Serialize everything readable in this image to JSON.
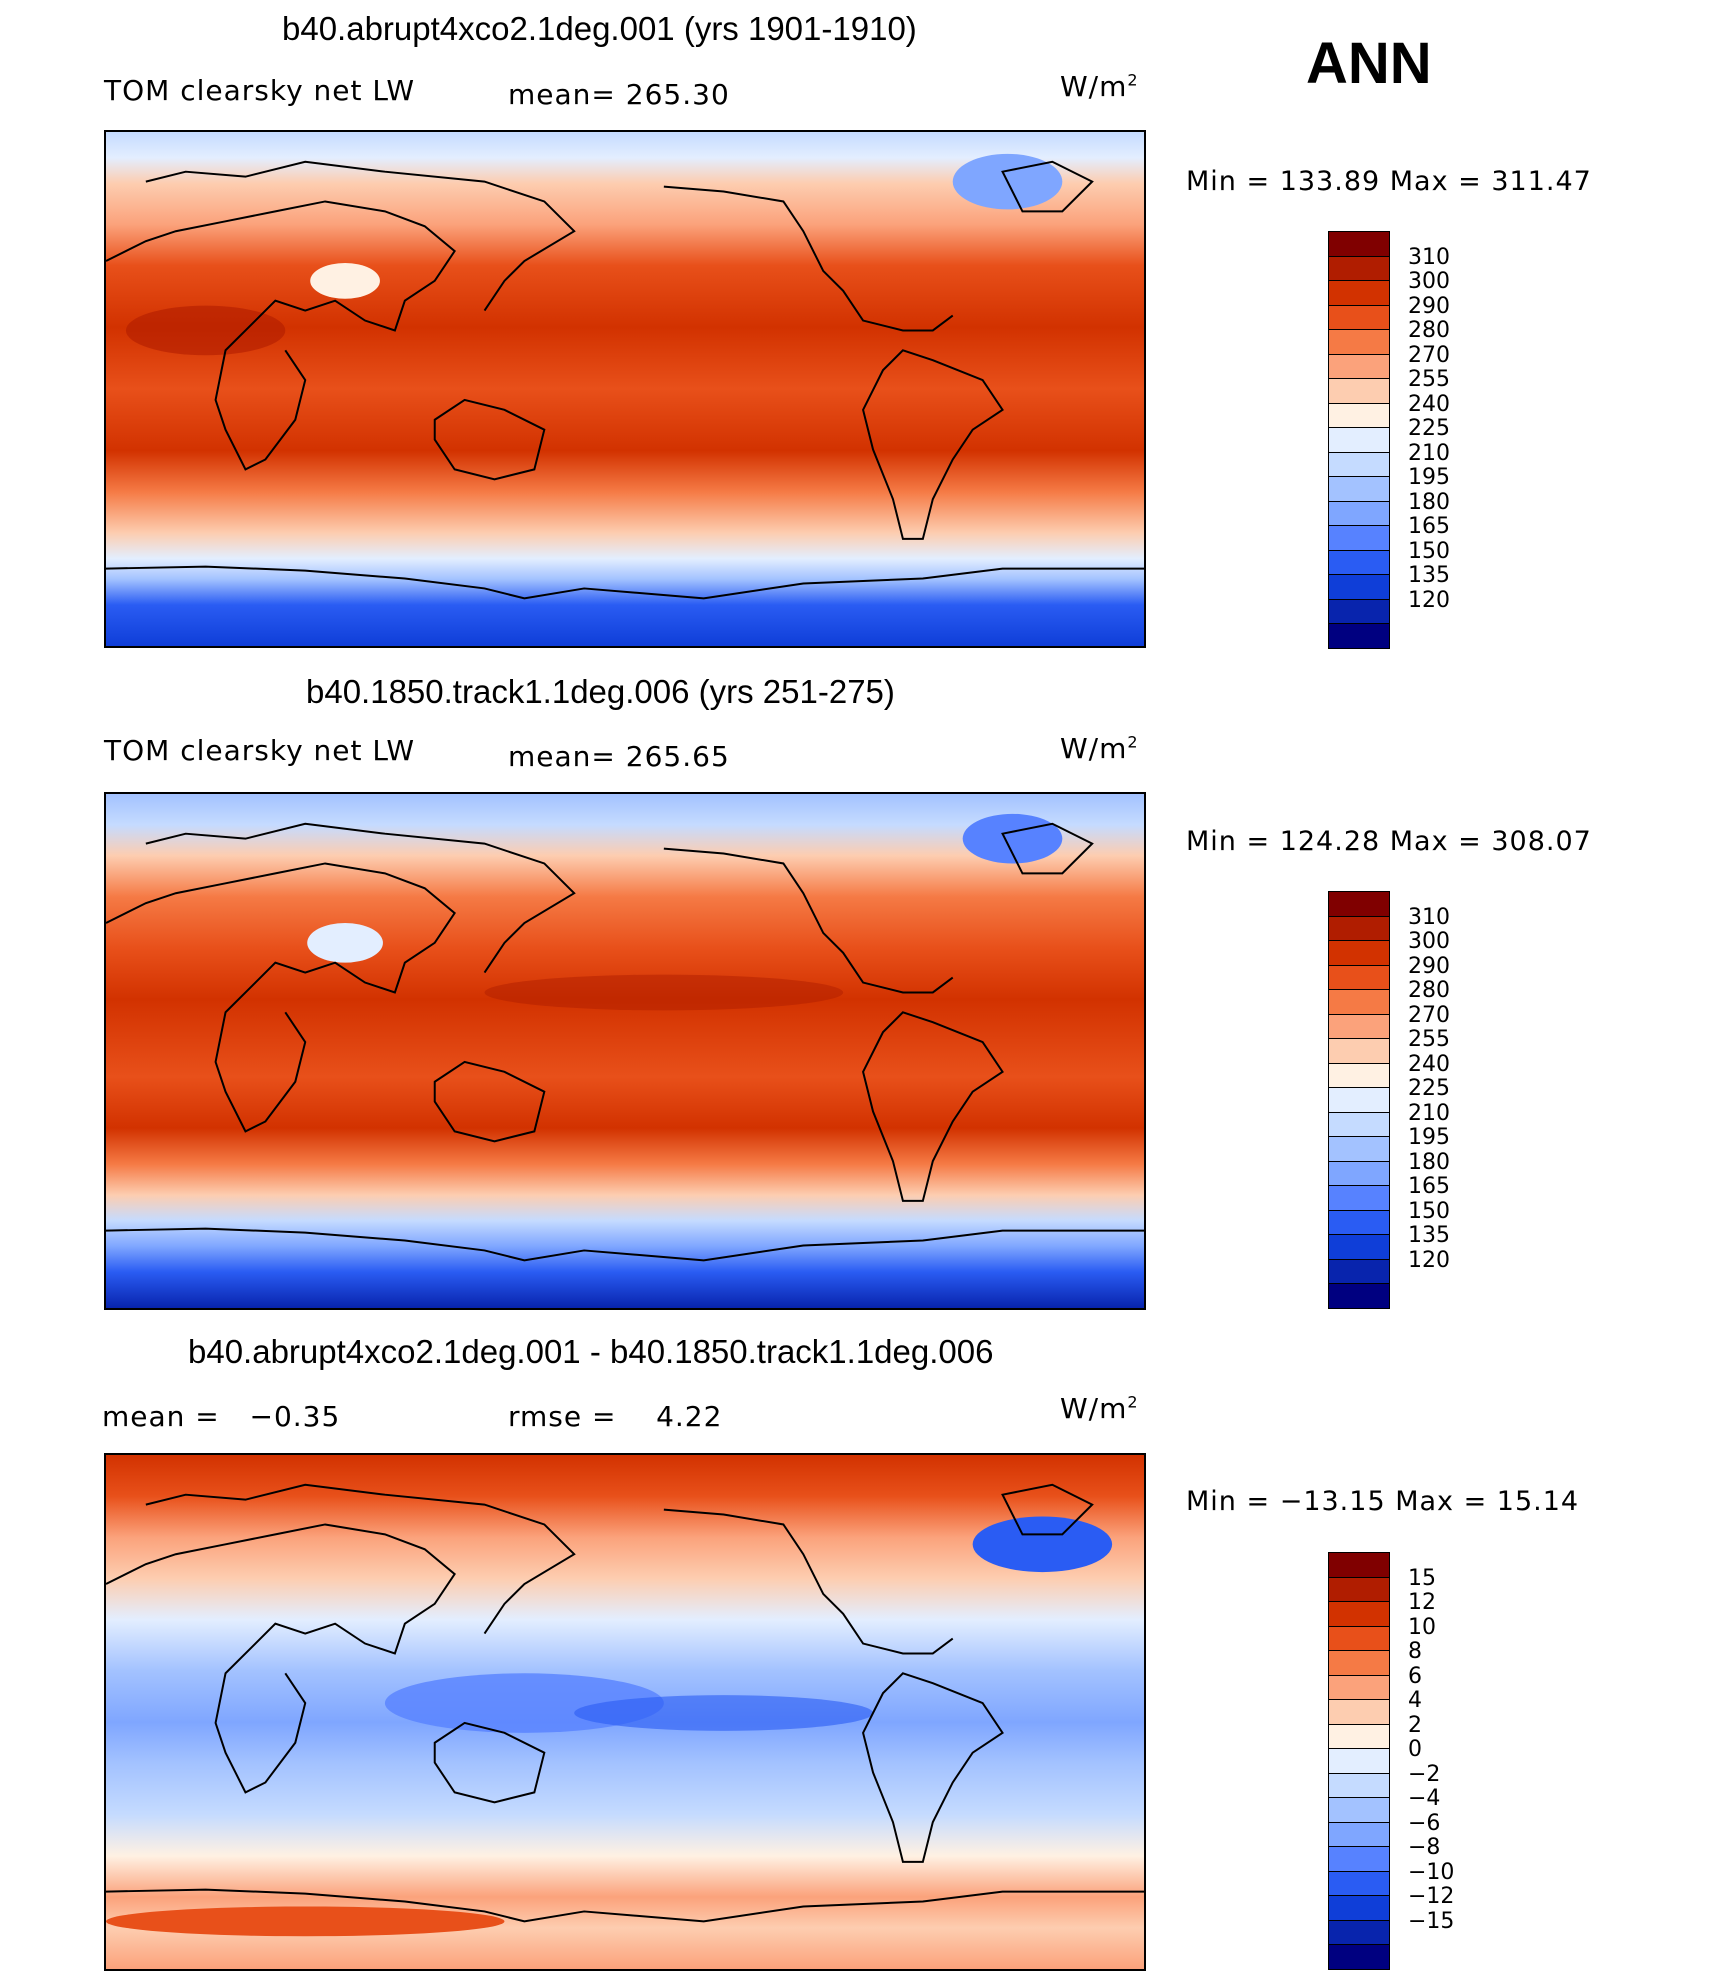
{
  "season_label": "ANN",
  "units_label": "W/m",
  "units_superscript": "2",
  "panels": [
    {
      "title": "b40.abrupt4xco2.1deg.001 (yrs 1901-1910)",
      "left_label": "TOM clearsky net LW",
      "stat_label": "mean=",
      "stat_value": "265.30",
      "min_max": "Min  =  133.89  Max  =  311.47"
    },
    {
      "title": "b40.1850.track1.1deg.006 (yrs 251-275)",
      "left_label": "TOM clearsky net LW",
      "stat_label": "mean=",
      "stat_value": "265.65",
      "min_max": "Min  =  124.28  Max  =  308.07"
    },
    {
      "title": "b40.abrupt4xco2.1deg.001 - b40.1850.track1.1deg.006",
      "left_label": "mean  =",
      "left_value": "−0.35",
      "stat_label": "rmse  =",
      "stat_value": "4.22",
      "min_max": "Min  =  −13.15  Max  =    15.14"
    }
  ],
  "colorbar_abs": {
    "labels": [
      "310",
      "300",
      "290",
      "280",
      "270",
      "255",
      "240",
      "225",
      "210",
      "195",
      "180",
      "165",
      "150",
      "135",
      "120"
    ],
    "colors": [
      "#800000",
      "#b01d00",
      "#d23200",
      "#e8501a",
      "#f57a45",
      "#fba27b",
      "#fdcdb0",
      "#fff1e3",
      "#e3eeff",
      "#c5dbff",
      "#a3c2ff",
      "#7fa6ff",
      "#5782ff",
      "#2a5cf3",
      "#0f3ed8",
      "#0824ad",
      "#000080"
    ]
  },
  "colorbar_diff": {
    "labels": [
      "15",
      "12",
      "10",
      "8",
      "6",
      "4",
      "2",
      "0",
      "−2",
      "−4",
      "−6",
      "−8",
      "−10",
      "−12",
      "−15"
    ],
    "colors": [
      "#800000",
      "#b01d00",
      "#d23200",
      "#e8501a",
      "#f57a45",
      "#fba27b",
      "#fdcdb0",
      "#fff1e3",
      "#e3eeff",
      "#c5dbff",
      "#a3c2ff",
      "#7fa6ff",
      "#5782ff",
      "#2a5cf3",
      "#0f3ed8",
      "#0824ad",
      "#000080"
    ]
  }
}
